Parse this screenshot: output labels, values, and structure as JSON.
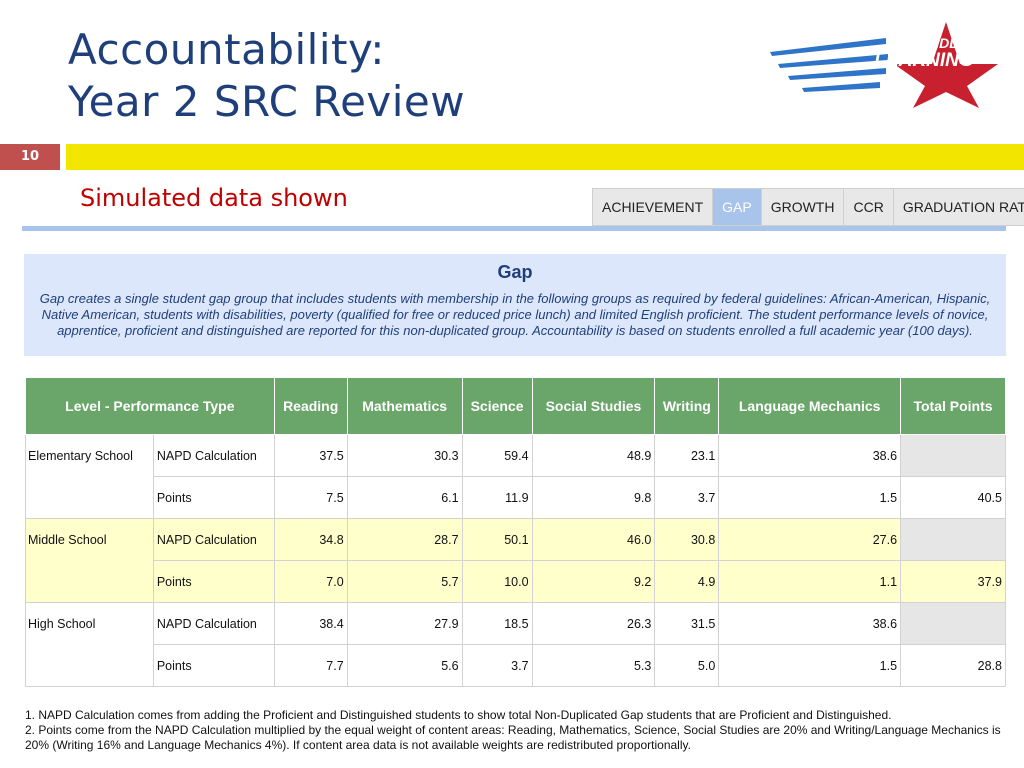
{
  "title": {
    "line1": "Accountability:",
    "line2": "Year 2 SRC Review"
  },
  "logo": {
    "line1": "UNBRIDLED",
    "line2": "LEARNING"
  },
  "slide_number": "10",
  "subtitle": "Simulated data shown",
  "tabs": [
    {
      "label": "ACHIEVEMENT",
      "active": false
    },
    {
      "label": "GAP",
      "active": true
    },
    {
      "label": "GROWTH",
      "active": false
    },
    {
      "label": "CCR",
      "active": false
    },
    {
      "label": "GRADUATION RATE",
      "active": false
    }
  ],
  "gap": {
    "title": "Gap",
    "description": "Gap creates a single student gap group that includes students with membership in the following groups as required by federal guidelines: African-American, Hispanic, Native American, students with disabilities, poverty (qualified for free or reduced price lunch) and limited English proficient. The student performance levels of novice, apprentice, proficient and distinguished are reported for this non-duplicated group. Accountability is based on students enrolled a full academic year (100 days)."
  },
  "table": {
    "headers": [
      "Level - Performance Type",
      "Reading",
      "Mathematics",
      "Science",
      "Social Studies",
      "Writing",
      "Language Mechanics",
      "Total Points"
    ],
    "groups": [
      {
        "level": "Elementary School",
        "rows": [
          {
            "type": "NAPD Calculation",
            "values": [
              "37.5",
              "30.3",
              "59.4",
              "48.9",
              "23.1",
              "38.6"
            ],
            "total": ""
          },
          {
            "type": "Points",
            "values": [
              "7.5",
              "6.1",
              "11.9",
              "9.8",
              "3.7",
              "1.5"
            ],
            "total": "40.5"
          }
        ]
      },
      {
        "level": "Middle School",
        "rows": [
          {
            "type": "NAPD Calculation",
            "values": [
              "34.8",
              "28.7",
              "50.1",
              "46.0",
              "30.8",
              "27.6"
            ],
            "total": ""
          },
          {
            "type": "Points",
            "values": [
              "7.0",
              "5.7",
              "10.0",
              "9.2",
              "4.9",
              "1.1"
            ],
            "total": "37.9"
          }
        ]
      },
      {
        "level": "High School",
        "rows": [
          {
            "type": "NAPD Calculation",
            "values": [
              "38.4",
              "27.9",
              "18.5",
              "26.3",
              "31.5",
              "38.6"
            ],
            "total": ""
          },
          {
            "type": "Points",
            "values": [
              "7.7",
              "5.6",
              "3.7",
              "5.3",
              "5.0",
              "1.5"
            ],
            "total": "28.8"
          }
        ]
      }
    ]
  },
  "footnotes": {
    "note1": "1. NAPD Calculation comes from adding the Proficient and Distinguished students to show total Non-Duplicated Gap students that are Proficient and Distinguished.",
    "note2": "2. Points come from the NAPD Calculation multiplied by the equal weight of content areas: Reading, Mathematics, Science, Social Studies are 20% and Writing/Language Mechanics is 20% (Writing 16% and Language Mechanics 4%). If content area data is not available weights are redistributed proportionally."
  },
  "colors": {
    "title": "#1f3f7a",
    "accent_red": "#c0504d",
    "accent_yellow": "#f2e600",
    "table_header": "#6aa56a",
    "highlight_row": "#ffffcc",
    "active_tab": "#a9c4eb"
  }
}
